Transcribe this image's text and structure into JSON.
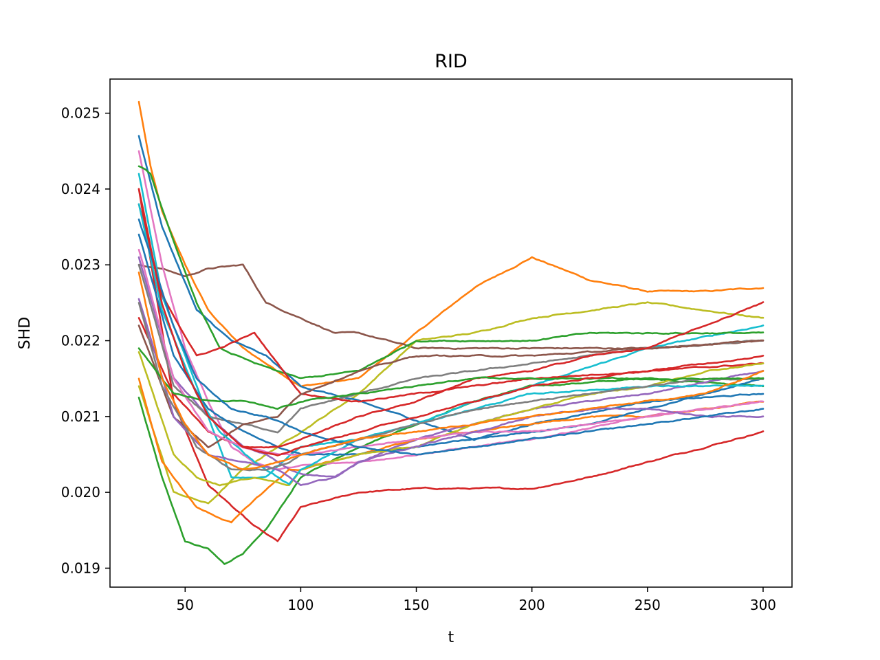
{
  "chart_data": {
    "type": "line",
    "title": "RID",
    "xlabel": "t",
    "ylabel": "SHD",
    "xlim": [
      17.5,
      312.5
    ],
    "ylim": [
      0.01875,
      0.02545
    ],
    "xticks": [
      50,
      100,
      150,
      200,
      250,
      300
    ],
    "yticks": [
      0.019,
      0.02,
      0.021,
      0.022,
      0.023,
      0.024,
      0.025
    ],
    "xtick_labels": [
      "50",
      "100",
      "150",
      "200",
      "250",
      "300"
    ],
    "ytick_labels": [
      "0.019",
      "0.020",
      "0.021",
      "0.022",
      "0.023",
      "0.024",
      "0.025"
    ],
    "grid": false,
    "legend": "none",
    "series": [
      {
        "color": "#ff7f0e",
        "x": [
          30,
          35,
          40,
          50,
          60,
          75,
          100,
          125,
          150,
          175,
          200,
          225,
          250,
          275,
          300
        ],
        "y": [
          0.02515,
          0.0243,
          0.0237,
          0.023,
          0.0224,
          0.0219,
          0.0214,
          0.0215,
          0.0221,
          0.0227,
          0.0231,
          0.0228,
          0.02265,
          0.02265,
          0.0227
        ]
      },
      {
        "color": "#2ca02c",
        "x": [
          30,
          40,
          50,
          60,
          67,
          75,
          85,
          100,
          125,
          150,
          175,
          200,
          250,
          300
        ],
        "y": [
          0.02125,
          0.0202,
          0.01935,
          0.01925,
          0.01905,
          0.0192,
          0.0195,
          0.0202,
          0.0206,
          0.0209,
          0.0212,
          0.0214,
          0.0215,
          0.0214
        ]
      },
      {
        "color": "#d62728",
        "x": [
          30,
          45,
          60,
          80,
          90,
          100,
          125,
          150,
          175,
          200,
          225,
          250,
          275,
          300
        ],
        "y": [
          0.024,
          0.0212,
          0.0201,
          0.01955,
          0.01935,
          0.0198,
          0.02,
          0.02005,
          0.02005,
          0.02005,
          0.0202,
          0.0204,
          0.0206,
          0.0208
        ]
      },
      {
        "color": "#8c564b",
        "x": [
          30,
          40,
          50,
          60,
          75,
          85,
          100,
          115,
          125,
          150,
          175,
          200,
          250,
          300
        ],
        "y": [
          0.023,
          0.02295,
          0.02285,
          0.02295,
          0.023,
          0.0225,
          0.0223,
          0.0221,
          0.0221,
          0.0219,
          0.0219,
          0.0219,
          0.0219,
          0.022
        ]
      },
      {
        "color": "#bcbd22",
        "x": [
          30,
          45,
          60,
          75,
          90,
          100,
          125,
          150,
          175,
          200,
          225,
          250,
          275,
          300
        ],
        "y": [
          0.0214,
          0.02,
          0.01985,
          0.0203,
          0.0206,
          0.0208,
          0.0213,
          0.022,
          0.0221,
          0.0223,
          0.0224,
          0.0225,
          0.0224,
          0.0223
        ]
      },
      {
        "color": "#1f77b4",
        "x": [
          30,
          40,
          55,
          70,
          85,
          100,
          125,
          150,
          175,
          200,
          250,
          300
        ],
        "y": [
          0.0247,
          0.0235,
          0.0224,
          0.022,
          0.0218,
          0.0214,
          0.0212,
          0.02095,
          0.0207,
          0.0209,
          0.0212,
          0.0213
        ]
      },
      {
        "color": "#17becf",
        "x": [
          30,
          40,
          50,
          60,
          70,
          85,
          100,
          125,
          150,
          175,
          200,
          250,
          300
        ],
        "y": [
          0.0242,
          0.0226,
          0.0218,
          0.021,
          0.0202,
          0.0202,
          0.0206,
          0.0207,
          0.0209,
          0.0212,
          0.0214,
          0.0219,
          0.0222
        ]
      },
      {
        "color": "#e377c2",
        "x": [
          30,
          40,
          50,
          60,
          70,
          80,
          90,
          100,
          125,
          150,
          175,
          200,
          250,
          300
        ],
        "y": [
          0.0245,
          0.023,
          0.0219,
          0.0212,
          0.0206,
          0.0204,
          0.0203,
          0.02035,
          0.0204,
          0.0205,
          0.0206,
          0.0207,
          0.021,
          0.0212
        ]
      },
      {
        "color": "#9467bd",
        "x": [
          30,
          45,
          60,
          75,
          85,
          95,
          100,
          115,
          125,
          150,
          175,
          200,
          250,
          300
        ],
        "y": [
          0.0231,
          0.0215,
          0.021,
          0.0206,
          0.0205,
          0.0203,
          0.02025,
          0.0202,
          0.0204,
          0.0207,
          0.0209,
          0.0211,
          0.0213,
          0.0216
        ]
      },
      {
        "color": "#7f7f7f",
        "x": [
          30,
          45,
          60,
          75,
          90,
          100,
          125,
          150,
          175,
          200,
          250,
          300
        ],
        "y": [
          0.023,
          0.0214,
          0.021,
          0.0209,
          0.0208,
          0.0211,
          0.0213,
          0.0215,
          0.0216,
          0.0217,
          0.0219,
          0.022
        ]
      },
      {
        "color": "#2ca02c",
        "x": [
          30,
          35,
          45,
          55,
          65,
          80,
          100,
          125,
          150,
          175,
          200,
          225,
          250,
          300
        ],
        "y": [
          0.0243,
          0.0242,
          0.0233,
          0.0225,
          0.0219,
          0.0217,
          0.0215,
          0.0216,
          0.022,
          0.022,
          0.022,
          0.0221,
          0.0221,
          0.0221
        ]
      },
      {
        "color": "#d62728",
        "x": [
          30,
          40,
          55,
          65,
          80,
          90,
          100,
          125,
          150,
          175,
          200,
          250,
          300
        ],
        "y": [
          0.0238,
          0.0226,
          0.0218,
          0.0219,
          0.0221,
          0.0217,
          0.0213,
          0.0212,
          0.0213,
          0.0214,
          0.0215,
          0.0216,
          0.0217
        ]
      },
      {
        "color": "#ff7f0e",
        "x": [
          30,
          40,
          55,
          70,
          80,
          95,
          100,
          125,
          150,
          175,
          200,
          225,
          250,
          275,
          300
        ],
        "y": [
          0.0215,
          0.0204,
          0.0198,
          0.0196,
          0.0199,
          0.0203,
          0.0203,
          0.0205,
          0.0207,
          0.0208,
          0.0209,
          0.021,
          0.021,
          0.0211,
          0.0212
        ]
      },
      {
        "color": "#1f77b4",
        "x": [
          30,
          45,
          60,
          75,
          90,
          100,
          125,
          150,
          175,
          200,
          225,
          250,
          275,
          300
        ],
        "y": [
          0.0234,
          0.0218,
          0.0211,
          0.0208,
          0.0206,
          0.0205,
          0.0205,
          0.0206,
          0.0207,
          0.0208,
          0.0209,
          0.0211,
          0.0213,
          0.0215
        ]
      },
      {
        "color": "#8c564b",
        "x": [
          30,
          45,
          60,
          75,
          90,
          100,
          125,
          150,
          175,
          200,
          250,
          300
        ],
        "y": [
          0.0222,
          0.021,
          0.0206,
          0.0209,
          0.021,
          0.0213,
          0.0216,
          0.0218,
          0.0218,
          0.0218,
          0.0219,
          0.022
        ]
      },
      {
        "color": "#bcbd22",
        "x": [
          30,
          45,
          55,
          65,
          80,
          95,
          100,
          125,
          150,
          175,
          200,
          225,
          250,
          275,
          300
        ],
        "y": [
          0.02185,
          0.0205,
          0.0202,
          0.0201,
          0.0202,
          0.0201,
          0.0203,
          0.0205,
          0.0206,
          0.0209,
          0.0211,
          0.0213,
          0.0214,
          0.0216,
          0.0217
        ]
      },
      {
        "color": "#d62728",
        "x": [
          30,
          45,
          60,
          75,
          90,
          100,
          125,
          150,
          175,
          200,
          225,
          250,
          275,
          300
        ],
        "y": [
          0.0223,
          0.0213,
          0.0208,
          0.0206,
          0.0206,
          0.0207,
          0.021,
          0.0212,
          0.0215,
          0.0216,
          0.0218,
          0.0219,
          0.0222,
          0.0225
        ]
      },
      {
        "color": "#17becf",
        "x": [
          30,
          40,
          55,
          65,
          80,
          95,
          100,
          125,
          150,
          175,
          200,
          250,
          300
        ],
        "y": [
          0.0238,
          0.0224,
          0.0213,
          0.0208,
          0.0204,
          0.0201,
          0.0203,
          0.0207,
          0.0209,
          0.0211,
          0.0213,
          0.0214,
          0.0214
        ]
      },
      {
        "color": "#e377c2",
        "x": [
          30,
          45,
          60,
          75,
          90,
          100,
          125,
          150,
          175,
          200,
          225,
          250,
          275,
          300
        ],
        "y": [
          0.0232,
          0.0215,
          0.0208,
          0.0206,
          0.0205,
          0.0205,
          0.0206,
          0.0207,
          0.0208,
          0.0208,
          0.0209,
          0.021,
          0.0211,
          0.0212
        ]
      },
      {
        "color": "#9467bd",
        "x": [
          30,
          45,
          60,
          75,
          90,
          100,
          115,
          125,
          150,
          175,
          200,
          225,
          250,
          275,
          300
        ],
        "y": [
          0.02255,
          0.021,
          0.0205,
          0.0204,
          0.0203,
          0.0201,
          0.0202,
          0.0204,
          0.0206,
          0.0208,
          0.021,
          0.0211,
          0.0211,
          0.021,
          0.021
        ]
      },
      {
        "color": "#7f7f7f",
        "x": [
          30,
          40,
          55,
          70,
          85,
          95,
          100,
          125,
          150,
          175,
          200,
          225,
          250,
          275,
          300
        ],
        "y": [
          0.0225,
          0.0214,
          0.0206,
          0.0203,
          0.0203,
          0.0204,
          0.0205,
          0.0207,
          0.0209,
          0.0211,
          0.0212,
          0.0213,
          0.0214,
          0.0215,
          0.0215
        ]
      },
      {
        "color": "#2ca02c",
        "x": [
          30,
          45,
          60,
          75,
          90,
          100,
          125,
          150,
          175,
          200,
          225,
          250,
          275,
          300
        ],
        "y": [
          0.0219,
          0.0213,
          0.0212,
          0.0212,
          0.0211,
          0.0212,
          0.0213,
          0.0214,
          0.0215,
          0.0215,
          0.0215,
          0.0215,
          0.0215,
          0.0215
        ]
      },
      {
        "color": "#1f77b4",
        "x": [
          30,
          45,
          55,
          70,
          85,
          100,
          125,
          150,
          175,
          200,
          225,
          250,
          275,
          300
        ],
        "y": [
          0.0236,
          0.0222,
          0.0215,
          0.0211,
          0.021,
          0.0208,
          0.0206,
          0.0205,
          0.0206,
          0.0207,
          0.0208,
          0.0209,
          0.021,
          0.0211
        ]
      },
      {
        "color": "#ff7f0e",
        "x": [
          30,
          40,
          50,
          60,
          75,
          90,
          100,
          125,
          150,
          175,
          200,
          225,
          250,
          275,
          300
        ],
        "y": [
          0.0229,
          0.0215,
          0.0209,
          0.0205,
          0.0203,
          0.0204,
          0.0205,
          0.0207,
          0.0208,
          0.0209,
          0.021,
          0.0211,
          0.0212,
          0.0213,
          0.0216
        ]
      },
      {
        "color": "#d62728",
        "x": [
          30,
          40,
          50,
          60,
          75,
          90,
          100,
          125,
          150,
          175,
          200,
          250,
          300
        ],
        "y": [
          0.024,
          0.0225,
          0.0216,
          0.021,
          0.0206,
          0.0205,
          0.0206,
          0.0208,
          0.021,
          0.0212,
          0.0214,
          0.0216,
          0.0218
        ]
      }
    ]
  }
}
